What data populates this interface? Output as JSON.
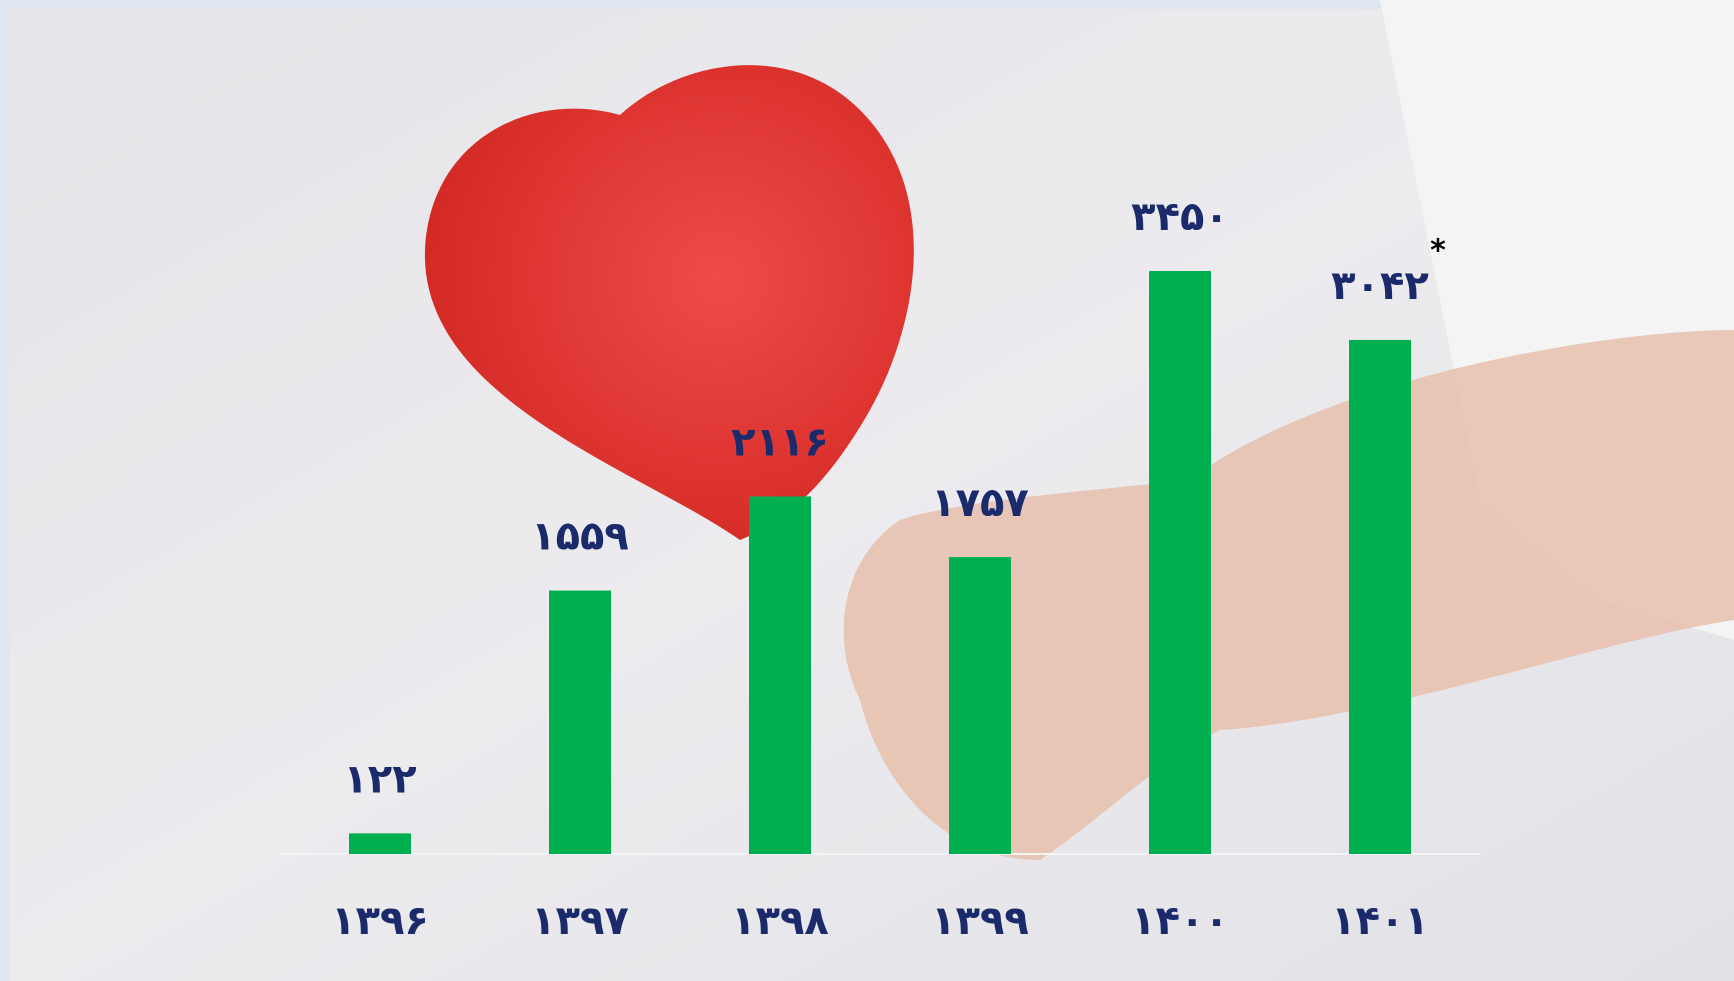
{
  "chart_data": {
    "type": "bar",
    "categories": [
      "۱۳۹۶",
      "۱۳۹۷",
      "۱۳۹۸",
      "۱۳۹۹",
      "۱۴۰۰",
      "۱۴۰۱"
    ],
    "values": [
      122,
      1559,
      2116,
      1757,
      3450,
      3042
    ],
    "value_labels": [
      "۱۲۲",
      "۱۵۵۹",
      "۲۱۱۶",
      "۱۷۵۷",
      "۳۴۵۰",
      "۳۰۴۲"
    ],
    "color": "#00b050",
    "annotations": [
      "*"
    ]
  }
}
